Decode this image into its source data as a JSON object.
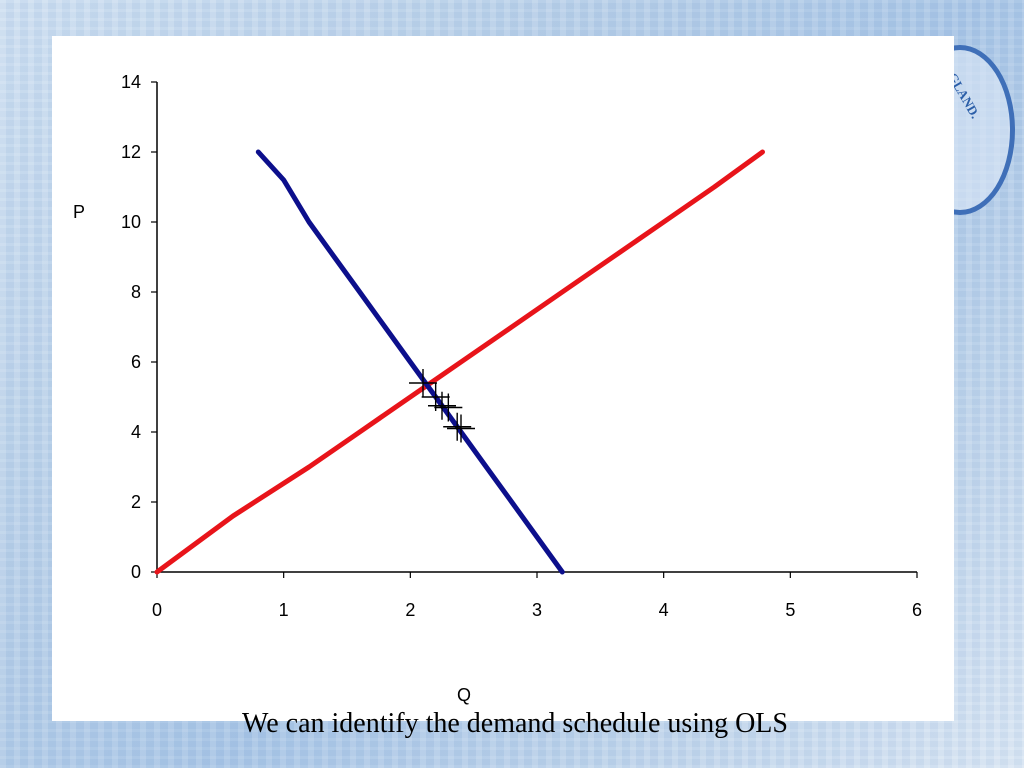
{
  "slide": {
    "caption": "We can identify the demand schedule using OLS",
    "seal_text": "GLAND."
  },
  "colors": {
    "supply": "#e8141a",
    "demand": "#0c0f8c",
    "axis": "#000000",
    "marker": "#000000"
  },
  "chart_data": {
    "type": "line",
    "title": "",
    "xlabel": "Q",
    "ylabel": "P",
    "xlim": [
      0,
      6
    ],
    "ylim": [
      0,
      14
    ],
    "xticks": [
      "0",
      "1",
      "2",
      "3",
      "4",
      "5",
      "6"
    ],
    "yticks": [
      "0",
      "2",
      "4",
      "6",
      "8",
      "10",
      "12",
      "14"
    ],
    "grid": false,
    "legend": "none",
    "series": [
      {
        "key": "supply",
        "points": [
          [
            0,
            0
          ],
          [
            0.6,
            1.6
          ],
          [
            1.2,
            3.0
          ],
          [
            1.6,
            4.0
          ],
          [
            2.0,
            5.0
          ],
          [
            2.4,
            6.0
          ],
          [
            2.8,
            7.0
          ],
          [
            3.2,
            8.0
          ],
          [
            3.6,
            9.0
          ],
          [
            4.0,
            10.0
          ],
          [
            4.4,
            11.0
          ],
          [
            4.78,
            12.0
          ]
        ]
      },
      {
        "key": "demand",
        "points": [
          [
            0.8,
            12.0
          ],
          [
            1.0,
            11.2
          ],
          [
            1.2,
            10.0
          ],
          [
            1.4,
            9.0
          ],
          [
            1.6,
            8.0
          ],
          [
            1.8,
            7.0
          ],
          [
            2.0,
            6.0
          ],
          [
            2.2,
            5.0
          ],
          [
            2.4,
            4.0
          ],
          [
            2.6,
            3.0
          ],
          [
            2.8,
            2.0
          ],
          [
            3.0,
            1.0
          ],
          [
            3.2,
            0.0
          ]
        ]
      }
    ],
    "markers": [
      [
        2.1,
        5.4
      ],
      [
        2.2,
        5.0
      ],
      [
        2.25,
        4.75
      ],
      [
        2.3,
        4.7
      ],
      [
        2.37,
        4.15
      ],
      [
        2.4,
        4.1
      ]
    ]
  }
}
